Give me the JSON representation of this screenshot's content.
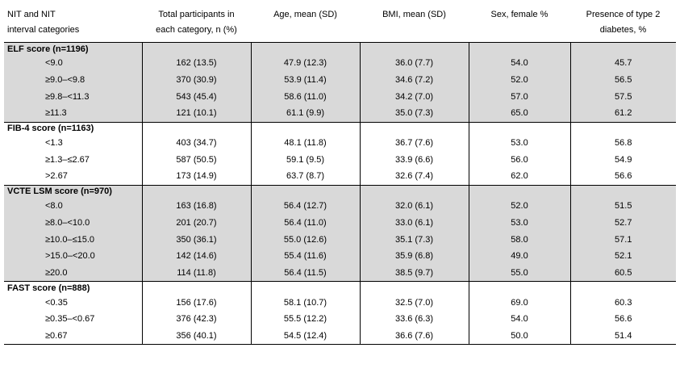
{
  "headers": [
    [
      "NIT and NIT",
      "interval categories"
    ],
    [
      "Total participants in",
      "each category, n (%)"
    ],
    [
      "Age, mean (SD)"
    ],
    [
      "BMI, mean (SD)"
    ],
    [
      "Sex, female %"
    ],
    [
      "Presence of type 2",
      "diabetes, %"
    ]
  ],
  "groups": [
    {
      "title": "ELF score (n=1196)",
      "shaded": true,
      "rows": [
        [
          "<9.0",
          "162 (13.5)",
          "47.9 (12.3)",
          "36.0 (7.7)",
          "54.0",
          "45.7"
        ],
        [
          "≥9.0–<9.8",
          "370 (30.9)",
          "53.9 (11.4)",
          "34.6 (7.2)",
          "52.0",
          "56.5"
        ],
        [
          "≥9.8–<11.3",
          "543 (45.4)",
          "58.6 (11.0)",
          "34.2 (7.0)",
          "57.0",
          "57.5"
        ],
        [
          "≥11.3",
          "121 (10.1)",
          "61.1 (9.9)",
          "35.0 (7.3)",
          "65.0",
          "61.2"
        ]
      ]
    },
    {
      "title": "FIB-4 score (n=1163)",
      "shaded": false,
      "rows": [
        [
          "<1.3",
          "403 (34.7)",
          "48.1 (11.8)",
          "36.7 (7.6)",
          "53.0",
          "56.8"
        ],
        [
          "≥1.3–≤2.67",
          "587 (50.5)",
          "59.1 (9.5)",
          "33.9 (6.6)",
          "56.0",
          "54.9"
        ],
        [
          ">2.67",
          "173 (14.9)",
          "63.7 (8.7)",
          "32.6 (7.4)",
          "62.0",
          "56.6"
        ]
      ]
    },
    {
      "title": "VCTE LSM score (n=970)",
      "shaded": true,
      "rows": [
        [
          "<8.0",
          "163 (16.8)",
          "56.4 (12.7)",
          "32.0 (6.1)",
          "52.0",
          "51.5"
        ],
        [
          "≥8.0–<10.0",
          "201 (20.7)",
          "56.4 (11.0)",
          "33.0 (6.1)",
          "53.0",
          "52.7"
        ],
        [
          "≥10.0–≤15.0",
          "350 (36.1)",
          "55.0 (12.6)",
          "35.1 (7.3)",
          "58.0",
          "57.1"
        ],
        [
          ">15.0–<20.0",
          "142 (14.6)",
          "55.4 (11.6)",
          "35.9 (6.8)",
          "49.0",
          "52.1"
        ],
        [
          "≥20.0",
          "114 (11.8)",
          "56.4 (11.5)",
          "38.5 (9.7)",
          "55.0",
          "60.5"
        ]
      ]
    },
    {
      "title": "FAST score (n=888)",
      "shaded": false,
      "rows": [
        [
          "<0.35",
          "156 (17.6)",
          "58.1 (10.7)",
          "32.5 (7.0)",
          "69.0",
          "60.3"
        ],
        [
          "≥0.35–<0.67",
          "376 (42.3)",
          "55.5 (12.2)",
          "33.6 (6.3)",
          "54.0",
          "56.6"
        ],
        [
          "≥0.67",
          "356 (40.1)",
          "54.5 (12.4)",
          "36.6 (7.6)",
          "50.0",
          "51.4"
        ]
      ]
    }
  ],
  "colors": {
    "shade": "#d9d9d9",
    "rule": "#000000"
  }
}
